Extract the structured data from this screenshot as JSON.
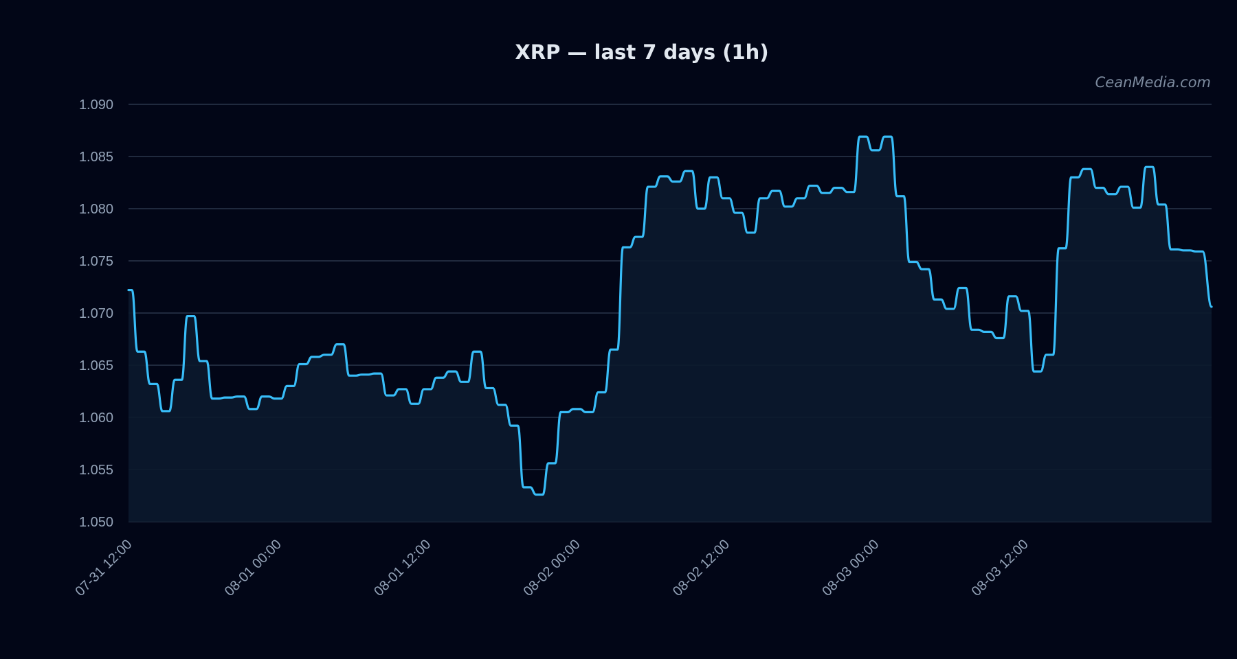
{
  "colors": {
    "background": "#020617",
    "line": "#38bdf8",
    "area": "#0b1a2e",
    "grid": "#334155",
    "tick_text": "#94a3b8",
    "title_text": "#e2e8f0",
    "watermark_text": "#7c8a9e"
  },
  "watermark": "CeanMedia.com",
  "chart_data": {
    "type": "area",
    "title": "XRP — last 7 days (1h)",
    "xlabel": "",
    "ylabel": "",
    "grid": true,
    "legend": "none",
    "ylim": [
      1.05,
      1.09
    ],
    "yticks": [
      1.05,
      1.055,
      1.06,
      1.065,
      1.07,
      1.075,
      1.08,
      1.085,
      1.09
    ],
    "ytick_labels": [
      "1.050",
      "1.055",
      "1.060",
      "1.065",
      "1.070",
      "1.075",
      "1.080",
      "1.085",
      "1.090"
    ],
    "xlim": [
      "07-31 12:00",
      "08-03 23:00"
    ],
    "xticks": [
      "07-31 12:00",
      "08-01 00:00",
      "08-01 12:00",
      "08-02 00:00",
      "08-02 12:00",
      "08-03 00:00",
      "08-03 12:00"
    ],
    "x_interval": "1h",
    "series": [
      {
        "values": [
          1.0722,
          1.0663,
          1.0632,
          1.0606,
          1.0636,
          1.0697,
          1.0654,
          1.0618,
          1.0619,
          1.062,
          1.0608,
          1.062,
          1.0618,
          1.063,
          1.0651,
          1.0658,
          1.066,
          1.067,
          1.064,
          1.0641,
          1.0642,
          1.0621,
          1.0627,
          1.0613,
          1.0627,
          1.0638,
          1.0644,
          1.0634,
          1.0663,
          1.0628,
          1.0612,
          1.0592,
          1.0533,
          1.0526,
          1.0556,
          1.0605,
          1.0608,
          1.0605,
          1.0624,
          1.0665,
          1.0763,
          1.0773,
          1.0821,
          1.0831,
          1.0826,
          1.0836,
          1.08,
          1.083,
          1.081,
          1.0796,
          1.0777,
          1.081,
          1.0817,
          1.0802,
          1.081,
          1.0822,
          1.0815,
          1.082,
          1.0816,
          1.0869,
          1.0856,
          1.0869,
          1.0812,
          1.0749,
          1.0742,
          1.0713,
          1.0704,
          1.0724,
          1.0684,
          1.0682,
          1.0676,
          1.0716,
          1.0702,
          1.0644,
          1.066,
          1.0762,
          1.083,
          1.0838,
          1.082,
          1.0814,
          1.0821,
          1.0801,
          1.084,
          1.0804,
          1.0761,
          1.076,
          1.0759,
          1.0706
        ]
      }
    ]
  }
}
